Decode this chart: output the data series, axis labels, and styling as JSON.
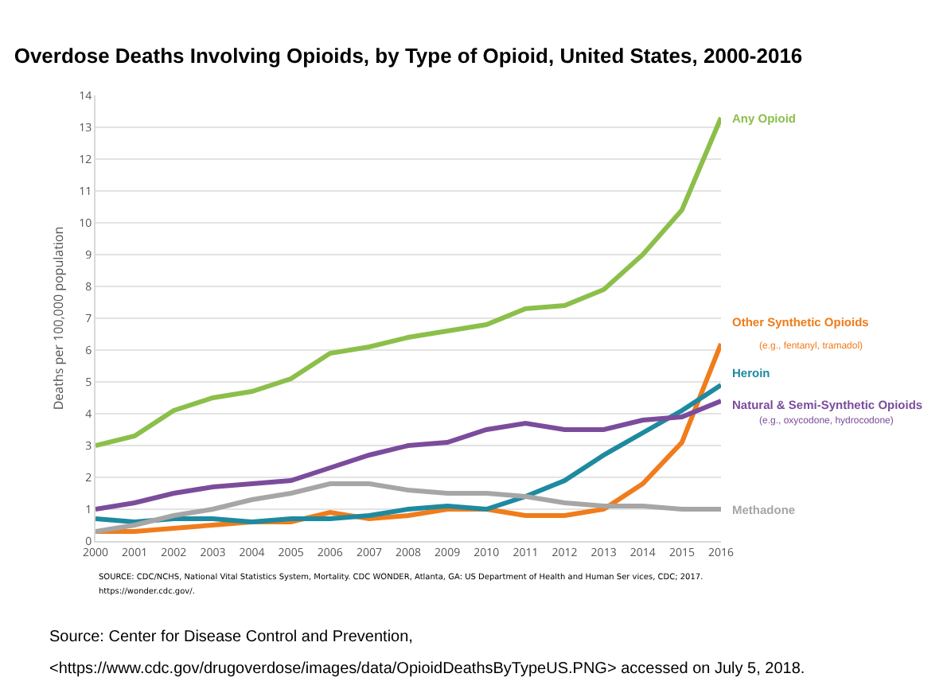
{
  "chart_data": {
    "type": "line",
    "title": "Overdose Deaths Involving Opioids, by Type of Opioid, United States, 2000-2016",
    "ylabel": "Deaths per 100,000 population",
    "x": [
      2000,
      2001,
      2002,
      2003,
      2004,
      2005,
      2006,
      2007,
      2008,
      2009,
      2010,
      2011,
      2012,
      2013,
      2014,
      2015,
      2016
    ],
    "xlim": [
      2000,
      2016
    ],
    "xticks": [
      2000,
      2001,
      2002,
      2003,
      2004,
      2005,
      2006,
      2007,
      2008,
      2009,
      2010,
      2011,
      2012,
      2013,
      2014,
      2015,
      2016
    ],
    "ylim": [
      0,
      14
    ],
    "yticks": [
      0,
      1,
      2,
      3,
      4,
      5,
      6,
      7,
      8,
      9,
      10,
      11,
      12,
      13,
      14
    ],
    "grid": "y",
    "legend": false,
    "marker": "none",
    "line_style": "solid",
    "series": [
      {
        "name": "Any Opioid",
        "color": "#8cbf4a",
        "values": [
          3.0,
          3.3,
          4.1,
          4.5,
          4.7,
          5.1,
          5.9,
          6.1,
          6.4,
          6.6,
          6.8,
          7.3,
          7.4,
          7.9,
          9.0,
          10.4,
          13.3
        ]
      },
      {
        "name": "Other Synthetic Opioids",
        "color": "#f07c1b",
        "values": [
          0.3,
          0.3,
          0.4,
          0.5,
          0.6,
          0.6,
          0.9,
          0.7,
          0.8,
          1.0,
          1.0,
          0.8,
          0.8,
          1.0,
          1.8,
          3.1,
          6.2
        ]
      },
      {
        "name": "Heroin",
        "color": "#1e8aa0",
        "values": [
          0.7,
          0.6,
          0.7,
          0.7,
          0.6,
          0.7,
          0.7,
          0.8,
          1.0,
          1.1,
          1.0,
          1.4,
          1.9,
          2.7,
          3.4,
          4.1,
          4.9
        ]
      },
      {
        "name": "Natural & Semi-Synthetic Opioids",
        "color": "#7b4c9c",
        "values": [
          1.0,
          1.2,
          1.5,
          1.7,
          1.8,
          1.9,
          2.3,
          2.7,
          3.0,
          3.1,
          3.5,
          3.7,
          3.5,
          3.5,
          3.8,
          3.9,
          4.4
        ]
      },
      {
        "name": "Methadone",
        "color": "#a6a6a6",
        "values": [
          0.3,
          0.5,
          0.8,
          1.0,
          1.3,
          1.5,
          1.8,
          1.8,
          1.6,
          1.5,
          1.5,
          1.4,
          1.2,
          1.1,
          1.1,
          1.0,
          1.0
        ]
      }
    ],
    "annotations": [
      "(e.g., fentanyl, tramadol)",
      "(e.g., oxycodone, hydrocodone)",
      "SOURCE: CDC/NCHS, National Vital Statistics System, Mortality. CDC WONDER, Atlanta, GA: US Department of Health and Human Ser vices, CDC; 2017.",
      "https://wonder.cdc.gov/.",
      "Source: Center for Disease Control and Prevention,",
      "<https://www.cdc.gov/drugoverdose/images/data/OpioidDeathsByTypeUS.PNG> accessed on July 5, 2018."
    ]
  }
}
